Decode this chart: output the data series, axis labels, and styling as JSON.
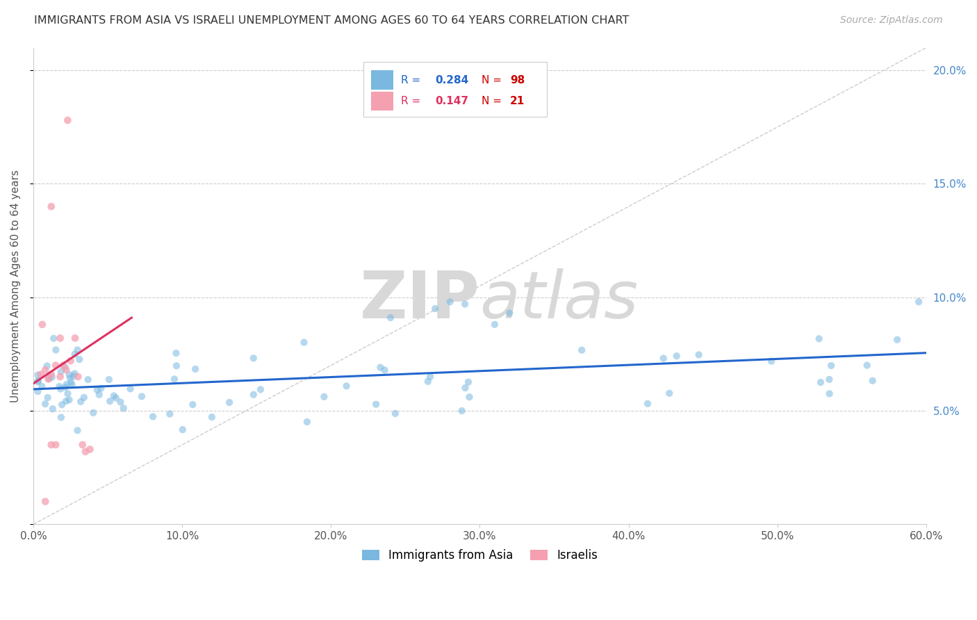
{
  "title": "IMMIGRANTS FROM ASIA VS ISRAELI UNEMPLOYMENT AMONG AGES 60 TO 64 YEARS CORRELATION CHART",
  "source": "Source: ZipAtlas.com",
  "ylabel": "Unemployment Among Ages 60 to 64 years",
  "xlim": [
    0.0,
    0.6
  ],
  "ylim": [
    0.0,
    0.21
  ],
  "xticks": [
    0.0,
    0.1,
    0.2,
    0.3,
    0.4,
    0.5,
    0.6
  ],
  "xtick_labels": [
    "0.0%",
    "10.0%",
    "20.0%",
    "30.0%",
    "40.0%",
    "50.0%",
    "60.0%"
  ],
  "yticks": [
    0.0,
    0.05,
    0.1,
    0.15,
    0.2
  ],
  "ytick_labels": [
    "",
    "5.0%",
    "10.0%",
    "15.0%",
    "20.0%"
  ],
  "blue_label": "Immigrants from Asia",
  "pink_label": "Israelis",
  "blue_R": "0.284",
  "blue_N": "98",
  "pink_R": "0.147",
  "pink_N": "21",
  "blue_color": "#7ab8e0",
  "pink_color": "#f4a0b0",
  "blue_line_color": "#2266cc",
  "pink_line_color": "#e03060",
  "blue_line_x0": 0.0,
  "blue_line_x1": 0.6,
  "blue_line_y0": 0.0595,
  "blue_line_y1": 0.0755,
  "pink_line_x0": 0.0,
  "pink_line_x1": 0.066,
  "pink_line_y0": 0.062,
  "pink_line_y1": 0.091,
  "diag_color": "#cccccc",
  "grid_color": "#cccccc",
  "background_color": "#ffffff",
  "watermark_color": "#d8d8d8",
  "tick_color": "#4488cc",
  "title_color": "#333333",
  "source_color": "#aaaaaa"
}
